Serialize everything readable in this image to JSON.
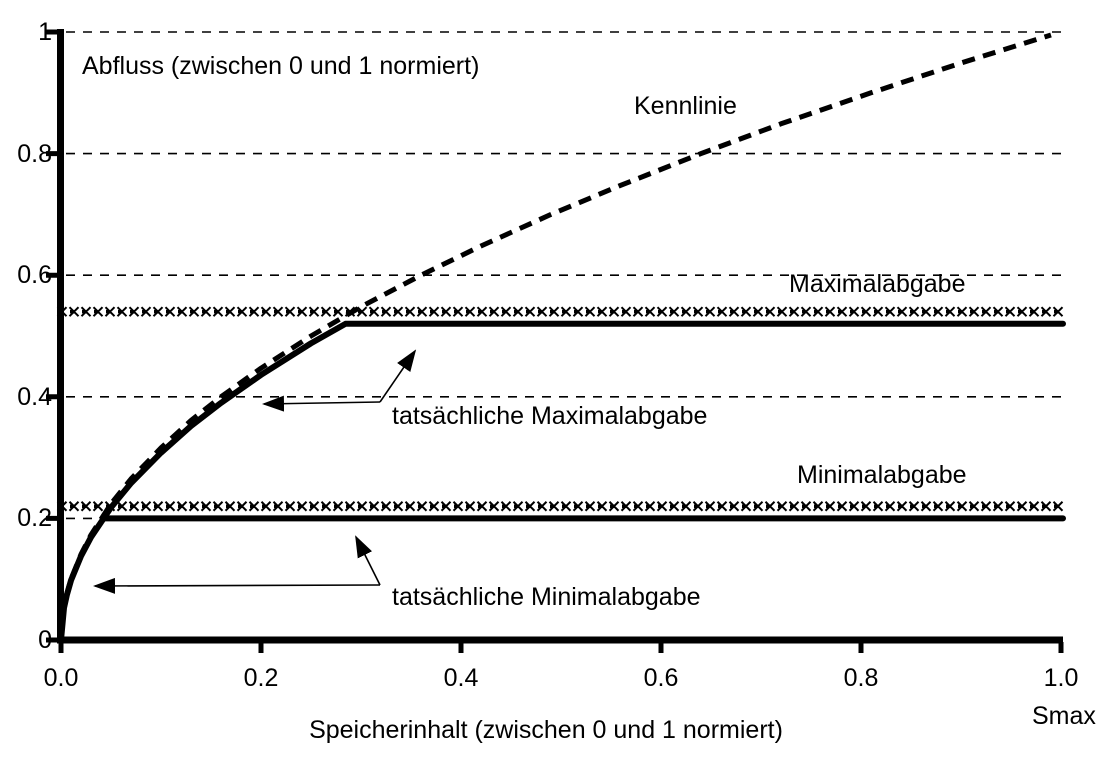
{
  "chart_data": {
    "type": "line",
    "title": "",
    "xlabel": "Speicherinhalt (zwischen 0 und 1 normiert)",
    "ylabel": "Abfluss (zwischen 0 und 1 normiert)",
    "x_axis_unit_label": "Smax",
    "xlim": [
      0,
      1
    ],
    "ylim": [
      0,
      1
    ],
    "grid": "horizontal-dashed",
    "legend_position": "none (inline labels)",
    "x_ticks": [
      {
        "v": 0.0,
        "label": "0.0"
      },
      {
        "v": 0.2,
        "label": "0.2"
      },
      {
        "v": 0.4,
        "label": "0.4"
      },
      {
        "v": 0.6,
        "label": "0.6"
      },
      {
        "v": 0.8,
        "label": "0.8"
      },
      {
        "v": 1.0,
        "label": "1.0"
      }
    ],
    "y_ticks": [
      {
        "v": 0.0,
        "label": "0"
      },
      {
        "v": 0.2,
        "label": "0.2"
      },
      {
        "v": 0.4,
        "label": "0.4"
      },
      {
        "v": 0.6,
        "label": "0.6"
      },
      {
        "v": 0.8,
        "label": "0.8"
      },
      {
        "v": 1.0,
        "label": "1"
      }
    ],
    "gridlines_y": [
      0.2,
      0.4,
      0.6,
      0.8,
      1.0
    ],
    "series": [
      {
        "name": "Kennlinie",
        "style": "dashed-thick",
        "points": [
          [
            0,
            0
          ],
          [
            0.003,
            0.055
          ],
          [
            0.006,
            0.077
          ],
          [
            0.01,
            0.1
          ],
          [
            0.02,
            0.141
          ],
          [
            0.03,
            0.173
          ],
          [
            0.05,
            0.224
          ],
          [
            0.07,
            0.265
          ],
          [
            0.1,
            0.316
          ],
          [
            0.13,
            0.361
          ],
          [
            0.16,
            0.4
          ],
          [
            0.2,
            0.447
          ],
          [
            0.25,
            0.5
          ],
          [
            0.3,
            0.548
          ],
          [
            0.36,
            0.6
          ],
          [
            0.42,
            0.648
          ],
          [
            0.49,
            0.7
          ],
          [
            0.56,
            0.748
          ],
          [
            0.64,
            0.8
          ],
          [
            0.72,
            0.849
          ],
          [
            0.81,
            0.9
          ],
          [
            0.9,
            0.949
          ],
          [
            0.99,
            0.995
          ]
        ]
      },
      {
        "name": "Maximalabgabe",
        "style": "x-marker-line",
        "value": 0.54,
        "x_range": [
          -0.003,
          1.002
        ]
      },
      {
        "name": "Minimalabgabe",
        "style": "x-marker-line",
        "value": 0.22,
        "x_range": [
          -0.003,
          1.002
        ]
      },
      {
        "name": "tatsächliche Maximalabgabe",
        "style": "solid-thick",
        "plateau_value": 0.52,
        "points": [
          [
            0,
            0
          ],
          [
            0.003,
            0.053
          ],
          [
            0.006,
            0.075
          ],
          [
            0.01,
            0.098
          ],
          [
            0.02,
            0.138
          ],
          [
            0.03,
            0.169
          ],
          [
            0.05,
            0.218
          ],
          [
            0.07,
            0.258
          ],
          [
            0.1,
            0.308
          ],
          [
            0.13,
            0.352
          ],
          [
            0.16,
            0.39
          ],
          [
            0.2,
            0.436
          ],
          [
            0.25,
            0.488
          ],
          [
            0.2845,
            0.52
          ],
          [
            1.002,
            0.52
          ]
        ]
      },
      {
        "name": "tatsächliche Minimalabgabe",
        "style": "solid-thick",
        "plateau_value": 0.2,
        "points": [
          [
            0.042,
            0.2
          ],
          [
            1.002,
            0.2
          ]
        ]
      }
    ],
    "annotations": [
      {
        "text": "Kennlinie",
        "attached_to": "Kennlinie curve"
      },
      {
        "text": "Maximalabgabe",
        "attached_to": "x-marker line at 0.54"
      },
      {
        "text": "Minimalabgabe",
        "attached_to": "x-marker line at 0.22"
      },
      {
        "text": "tatsächliche Maximalabgabe",
        "arrows": "one to rising curve, one to 0.52 plateau"
      },
      {
        "text": "tatsächliche Minimalabgabe",
        "arrows": "one to rising curve, one to 0.20 line"
      }
    ],
    "colors": {
      "ink": "#000000",
      "background": "#ffffff"
    }
  }
}
